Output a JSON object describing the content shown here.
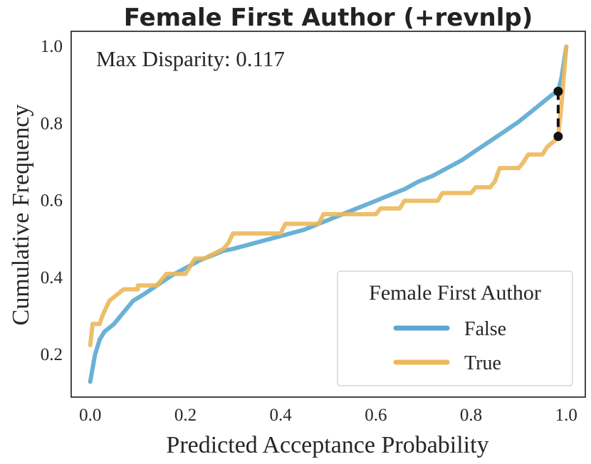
{
  "chart_data": {
    "type": "line",
    "title": "Female First Author (+revnlp)",
    "xlabel": "Predicted Acceptance Probability",
    "ylabel": "Cumulative Frequency",
    "xlim": [
      -0.04,
      1.04
    ],
    "ylim": [
      0.09,
      1.04
    ],
    "xticks": [
      "0.0",
      "0.2",
      "0.4",
      "0.6",
      "0.8",
      "1.0"
    ],
    "yticks": [
      "0.2",
      "0.4",
      "0.6",
      "0.8",
      "1.0"
    ],
    "annotation": "Max Disparity: 0.117",
    "legend": {
      "title": "Female First Author",
      "position": "lower-right"
    },
    "disparity": {
      "x": 0.983,
      "y_top": 0.884,
      "y_bottom": 0.767
    },
    "series": [
      {
        "name": "False",
        "color": "#5aa8d2",
        "x": [
          0.0,
          0.01,
          0.02,
          0.03,
          0.05,
          0.07,
          0.09,
          0.11,
          0.14,
          0.17,
          0.2,
          0.23,
          0.26,
          0.28,
          0.3,
          0.33,
          0.36,
          0.39,
          0.42,
          0.45,
          0.48,
          0.51,
          0.54,
          0.57,
          0.6,
          0.63,
          0.66,
          0.69,
          0.72,
          0.75,
          0.78,
          0.81,
          0.84,
          0.87,
          0.9,
          0.93,
          0.955,
          0.97,
          0.983,
          0.99,
          1.0
        ],
        "y": [
          0.13,
          0.2,
          0.24,
          0.26,
          0.28,
          0.31,
          0.34,
          0.355,
          0.38,
          0.405,
          0.425,
          0.445,
          0.46,
          0.47,
          0.475,
          0.485,
          0.495,
          0.505,
          0.515,
          0.525,
          0.54,
          0.555,
          0.57,
          0.585,
          0.6,
          0.615,
          0.63,
          0.65,
          0.665,
          0.685,
          0.705,
          0.73,
          0.755,
          0.78,
          0.805,
          0.835,
          0.86,
          0.875,
          0.884,
          0.92,
          1.0
        ]
      },
      {
        "name": "True",
        "color": "#ecb85a",
        "x": [
          0.0,
          0.005,
          0.02,
          0.025,
          0.04,
          0.06,
          0.07,
          0.1,
          0.1,
          0.14,
          0.16,
          0.2,
          0.21,
          0.22,
          0.24,
          0.28,
          0.29,
          0.3,
          0.4,
          0.41,
          0.48,
          0.49,
          0.6,
          0.61,
          0.65,
          0.66,
          0.73,
          0.74,
          0.8,
          0.81,
          0.84,
          0.85,
          0.86,
          0.9,
          0.91,
          0.92,
          0.95,
          0.96,
          0.975,
          0.983,
          0.99,
          1.0
        ],
        "y": [
          0.225,
          0.28,
          0.28,
          0.3,
          0.34,
          0.36,
          0.37,
          0.37,
          0.38,
          0.38,
          0.41,
          0.41,
          0.43,
          0.45,
          0.45,
          0.475,
          0.49,
          0.515,
          0.515,
          0.54,
          0.54,
          0.565,
          0.565,
          0.58,
          0.58,
          0.6,
          0.6,
          0.62,
          0.62,
          0.635,
          0.635,
          0.65,
          0.685,
          0.685,
          0.7,
          0.72,
          0.72,
          0.74,
          0.755,
          0.767,
          0.85,
          1.0
        ]
      }
    ]
  }
}
